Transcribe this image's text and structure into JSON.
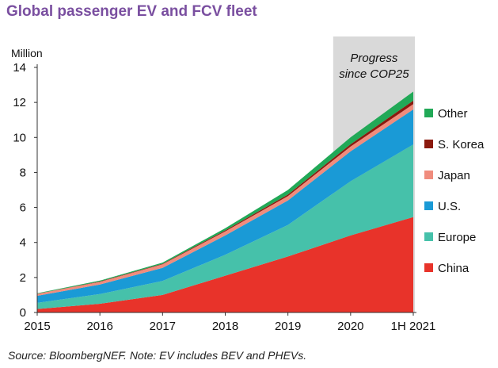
{
  "header": {
    "title": "Global passenger EV and FCV fleet"
  },
  "footer": {
    "source": "Source: BloombergNEF. Note: EV includes BEV and PHEVs."
  },
  "chart_data": {
    "type": "area",
    "stacked": true,
    "title": "Global passenger EV and FCV fleet",
    "ylabel": "Million",
    "xlabel": "",
    "ylim": [
      0,
      14
    ],
    "yticks": [
      0,
      2,
      4,
      6,
      8,
      10,
      12,
      14
    ],
    "categories": [
      "2015",
      "2016",
      "2017",
      "2018",
      "2019",
      "2020",
      "1H 2021"
    ],
    "grid": false,
    "legend_position": "right",
    "series": [
      {
        "name": "China",
        "color": "#e8332a",
        "values": [
          0.2,
          0.5,
          1.0,
          2.1,
          3.2,
          4.4,
          5.45
        ]
      },
      {
        "name": "Europe",
        "color": "#46c1aa",
        "values": [
          0.35,
          0.55,
          0.8,
          1.2,
          1.8,
          3.1,
          4.15
        ]
      },
      {
        "name": "U.S.",
        "color": "#1a9ad6",
        "values": [
          0.4,
          0.55,
          0.75,
          1.1,
          1.4,
          1.7,
          2.0
        ]
      },
      {
        "name": "Japan",
        "color": "#f08c7d",
        "values": [
          0.12,
          0.15,
          0.2,
          0.23,
          0.25,
          0.28,
          0.3
        ]
      },
      {
        "name": "S. Korea",
        "color": "#8b1a0e",
        "values": [
          0.0,
          0.02,
          0.03,
          0.06,
          0.09,
          0.13,
          0.2
        ]
      },
      {
        "name": "Other",
        "color": "#21a957",
        "values": [
          0.03,
          0.05,
          0.07,
          0.12,
          0.26,
          0.4,
          0.52
        ]
      }
    ],
    "highlight": {
      "from": "2020",
      "to": "1H 2021",
      "color": "#d9d9d9",
      "label_line1": "Progress",
      "label_line2": "since COP25"
    }
  }
}
